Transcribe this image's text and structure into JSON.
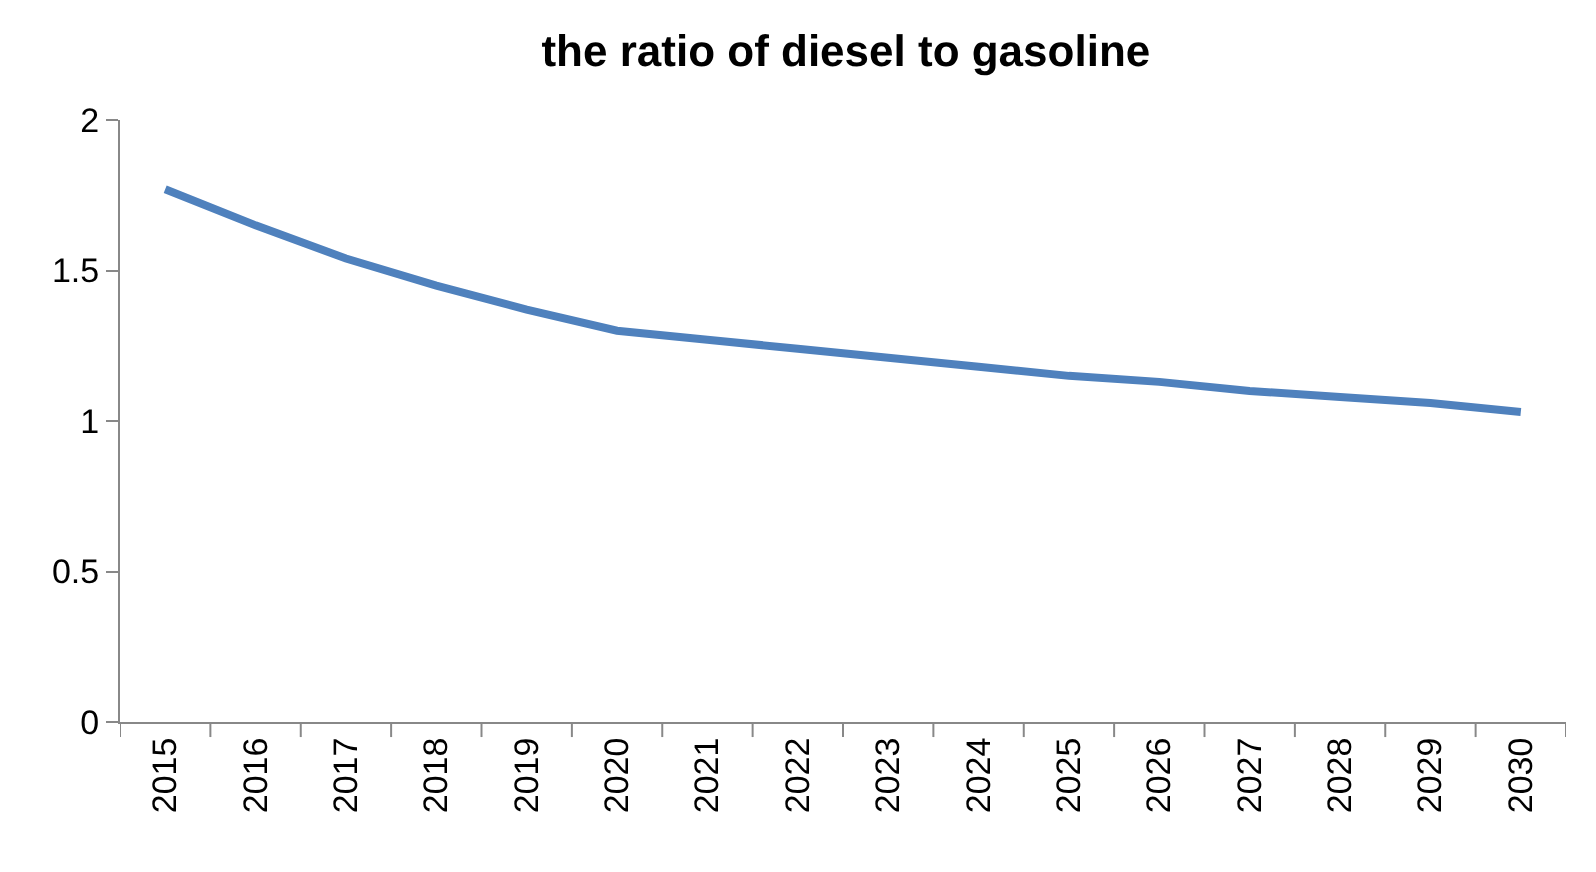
{
  "chart_data": {
    "type": "line",
    "title": "the ratio of diesel to gasoline",
    "categories": [
      "2015",
      "2016",
      "2017",
      "2018",
      "2019",
      "2020",
      "2021",
      "2022",
      "2023",
      "2024",
      "2025",
      "2026",
      "2027",
      "2028",
      "2029",
      "2030"
    ],
    "series": [
      {
        "color": "#4f81bd",
        "values": [
          1.77,
          1.65,
          1.54,
          1.45,
          1.37,
          1.3,
          1.27,
          1.24,
          1.21,
          1.18,
          1.15,
          1.13,
          1.1,
          1.08,
          1.06,
          1.03
        ]
      }
    ],
    "ylim": [
      0,
      2
    ],
    "yticks": [
      0,
      0.5,
      1,
      1.5,
      2
    ],
    "marker": "none",
    "line_style": "solid"
  }
}
